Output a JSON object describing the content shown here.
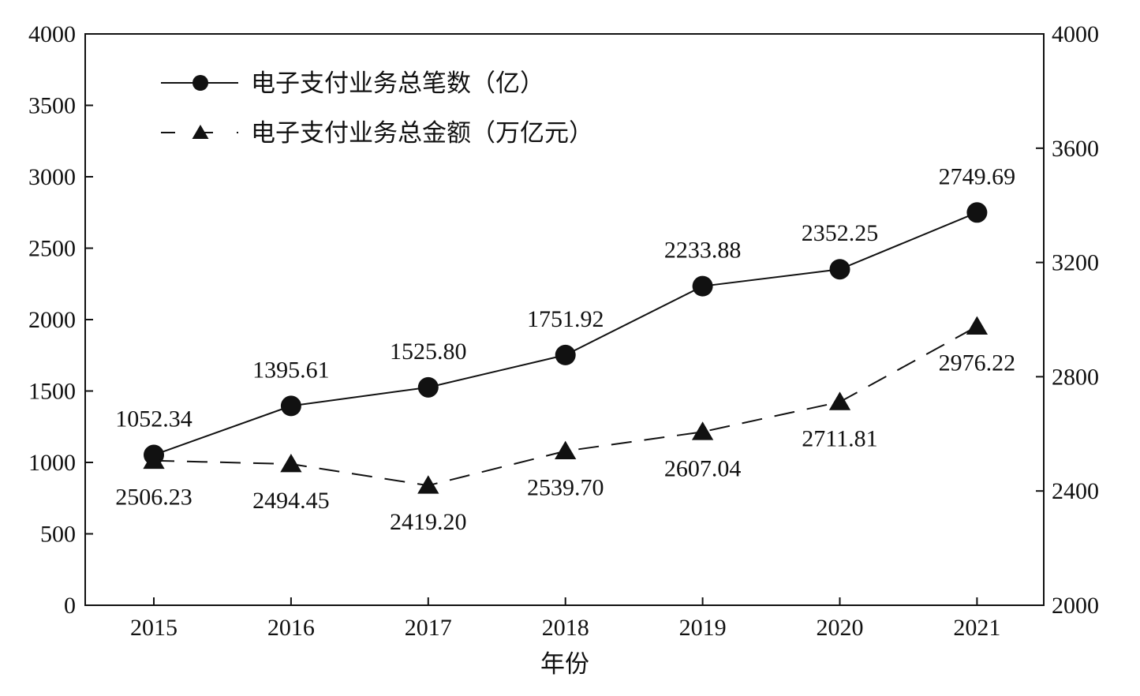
{
  "chart_data": {
    "type": "line",
    "title": "",
    "xlabel": "年份",
    "ylabel": "",
    "ylabel_right": "",
    "categories": [
      "2015",
      "2016",
      "2017",
      "2018",
      "2019",
      "2020",
      "2021"
    ],
    "ylim": [
      0,
      4000
    ],
    "yticks": [
      "0",
      "500",
      "1000",
      "1500",
      "2000",
      "2500",
      "3000",
      "3500",
      "4000"
    ],
    "y2lim": [
      2000,
      4000
    ],
    "y2ticks": [
      "2000",
      "2400",
      "2800",
      "3200",
      "3600",
      "4000"
    ],
    "grid": false,
    "legend_position": "top-left",
    "series": [
      {
        "name": "电子支付业务总笔数（亿）",
        "axis": "left",
        "line_style": "solid",
        "marker": "circle",
        "values": [
          1052.34,
          1395.61,
          1525.8,
          1751.92,
          2233.88,
          2352.25,
          2749.69
        ],
        "labels": [
          "1052.34",
          "1395.61",
          "1525.80",
          "1751.92",
          "2233.88",
          "2352.25",
          "2749.69"
        ],
        "label_position": "above"
      },
      {
        "name": "电子支付业务总金额（万亿元）",
        "axis": "right",
        "line_style": "dashed",
        "marker": "triangle",
        "values": [
          2506.23,
          2494.45,
          2419.2,
          2539.7,
          2607.04,
          2711.81,
          2976.22
        ],
        "labels": [
          "2506.23",
          "2494.45",
          "2419.20",
          "2539.70",
          "2607.04",
          "2711.81",
          "2976.22"
        ],
        "label_position": "below"
      }
    ],
    "colors": {
      "line": "#111111",
      "marker": "#111111",
      "background": "#ffffff"
    }
  }
}
